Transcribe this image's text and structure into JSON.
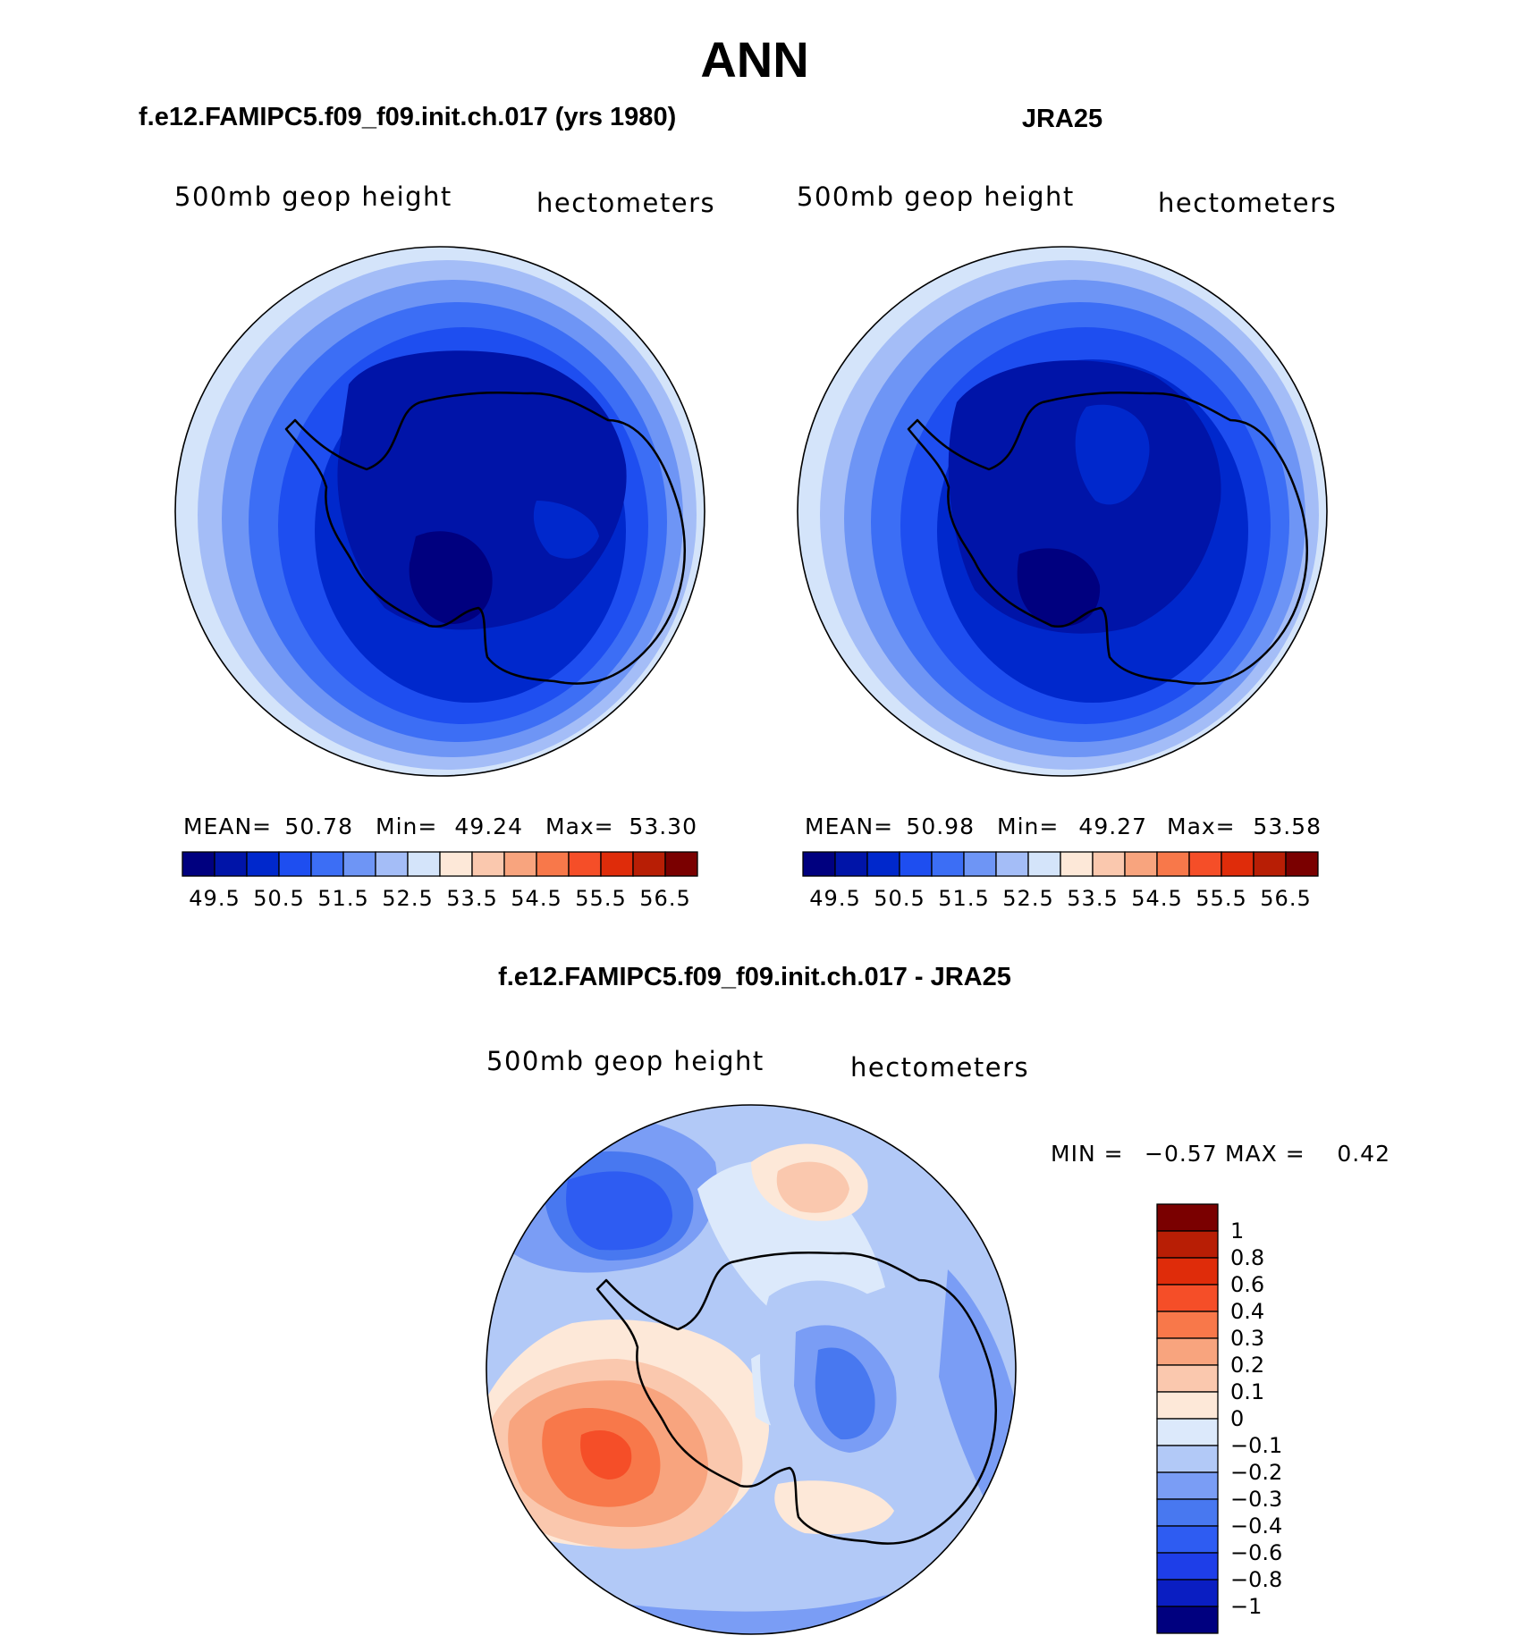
{
  "chart_data": {
    "type": "contour",
    "title": "ANN",
    "colors": {
      "abs": [
        "#00007f",
        "#0014a8",
        "#0028cc",
        "#1e4ef0",
        "#3c6ef5",
        "#6e95f5",
        "#a4bdf7",
        "#d4e4fa",
        "#fde8d8",
        "#fac8ae",
        "#f8a47e",
        "#f8784a",
        "#f54e28",
        "#df2c0a",
        "#b81e05",
        "#7a0000"
      ],
      "diff": [
        "#00007f",
        "#0a1ec2",
        "#1e3ee8",
        "#2e5cf2",
        "#4878f0",
        "#7a9df5",
        "#b2c9f7",
        "#dce9fb",
        "#fde8d8",
        "#fac8ae",
        "#f8a47e",
        "#f8784a",
        "#f54e28",
        "#df2c0a",
        "#b81e05",
        "#7a0000"
      ]
    },
    "panels": [
      {
        "id": "model",
        "title": "f.e12.FAMIPC5.f09_f09.init.ch.017 (yrs 1980)",
        "variable": "500mb geop height",
        "units": "hectometers",
        "stats": {
          "mean_label": "MEAN=",
          "mean": "50.78",
          "min_label": "Min=",
          "min": "49.24",
          "max_label": "Max=",
          "max": "53.30"
        },
        "colorbar_ticks": [
          "49.5",
          "50.5",
          "51.5",
          "52.5",
          "53.5",
          "54.5",
          "55.5",
          "56.5"
        ],
        "contour_levels": [
          49.5,
          50,
          50.5,
          51,
          51.5,
          52,
          52.5,
          53,
          53.5,
          54,
          54.5,
          55,
          55.5,
          56,
          56.5
        ]
      },
      {
        "id": "obs",
        "title": "JRA25",
        "variable": "500mb geop height",
        "units": "hectometers",
        "stats": {
          "mean_label": "MEAN=",
          "mean": "50.98",
          "min_label": "Min=",
          "min": "49.27",
          "max_label": "Max=",
          "max": "53.58"
        },
        "colorbar_ticks": [
          "49.5",
          "50.5",
          "51.5",
          "52.5",
          "53.5",
          "54.5",
          "55.5",
          "56.5"
        ],
        "contour_levels": [
          49.5,
          50,
          50.5,
          51,
          51.5,
          52,
          52.5,
          53,
          53.5,
          54,
          54.5,
          55,
          55.5,
          56,
          56.5
        ]
      },
      {
        "id": "diff",
        "title": "f.e12.FAMIPC5.f09_f09.init.ch.017 - JRA25",
        "variable": "500mb geop height",
        "units": "hectometers",
        "stats": {
          "min_label": "MIN =",
          "min": "−0.57",
          "max_label": "MAX =",
          "max": "0.42"
        },
        "colorbar_ticks": [
          "1",
          "0.8",
          "0.6",
          "0.4",
          "0.3",
          "0.2",
          "0.1",
          "0",
          "−0.1",
          "−0.2",
          "−0.3",
          "−0.4",
          "−0.6",
          "−0.8",
          "−1"
        ],
        "contour_levels": [
          -1,
          -0.8,
          -0.6,
          -0.4,
          -0.3,
          -0.2,
          -0.1,
          0,
          0.1,
          0.2,
          0.3,
          0.4,
          0.6,
          0.8,
          1
        ]
      }
    ]
  }
}
